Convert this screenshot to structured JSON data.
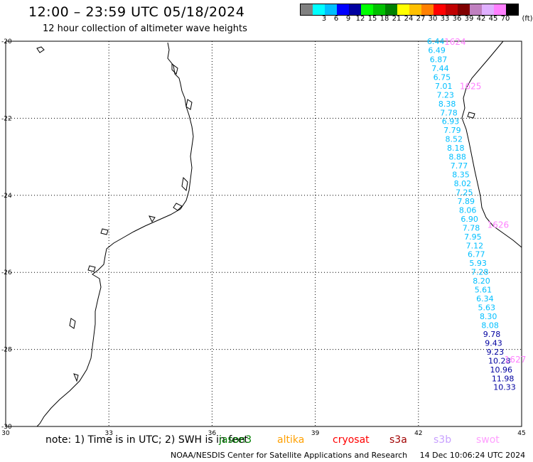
{
  "header": {
    "title": "12:00 – 23:59 UTC 05/18/2024",
    "subtitle": "12 hour collection of altimeter wave heights"
  },
  "legend": {
    "unit": "(ft)",
    "swatches": [
      {
        "color": "#808080",
        "label": ""
      },
      {
        "color": "#00ffff",
        "label": "3"
      },
      {
        "color": "#00bfff",
        "label": "6"
      },
      {
        "color": "#0000ff",
        "label": "9"
      },
      {
        "color": "#0000a0",
        "label": "12"
      },
      {
        "color": "#00ff00",
        "label": "15"
      },
      {
        "color": "#00c000",
        "label": "18"
      },
      {
        "color": "#008000",
        "label": "21"
      },
      {
        "color": "#ffff00",
        "label": "24"
      },
      {
        "color": "#ffc000",
        "label": "27"
      },
      {
        "color": "#ff8000",
        "label": "30"
      },
      {
        "color": "#ff0000",
        "label": "33"
      },
      {
        "color": "#c00000",
        "label": "36"
      },
      {
        "color": "#800000",
        "label": "39"
      },
      {
        "color": "#c080c0",
        "label": "42"
      },
      {
        "color": "#e0b0ff",
        "label": "45"
      },
      {
        "color": "#ff80ff",
        "label": "70"
      },
      {
        "color": "#000000",
        "label": ""
      }
    ]
  },
  "map": {
    "lat_labels": [
      "-20",
      "-22",
      "-24",
      "-26",
      "-28",
      "-30"
    ],
    "lon_labels": [
      "30",
      "33",
      "36",
      "39",
      "42",
      "45"
    ],
    "track_labels": [
      {
        "text": "1624",
        "lon": 42.75,
        "lat": -20.0,
        "color": "#ff80ff"
      },
      {
        "text": "1625",
        "lon": 43.2,
        "lat": -21.15,
        "color": "#ff80ff"
      },
      {
        "text": "1626",
        "lon": 44.0,
        "lat": -24.75,
        "color": "#ff80ff"
      },
      {
        "text": "1627",
        "lon": 44.5,
        "lat": -28.25,
        "color": "#ff80ff"
      }
    ],
    "swh_points": [
      {
        "value": "6.44",
        "lon": 42.25,
        "lat": -20.0,
        "color": "#00bfff"
      },
      {
        "value": "6.49",
        "lon": 42.28,
        "lat": -20.23,
        "color": "#00bfff"
      },
      {
        "value": "6.87",
        "lon": 42.33,
        "lat": -20.47,
        "color": "#00bfff"
      },
      {
        "value": "7.44",
        "lon": 42.38,
        "lat": -20.7,
        "color": "#00bfff"
      },
      {
        "value": "6.75",
        "lon": 42.43,
        "lat": -20.93,
        "color": "#00bfff"
      },
      {
        "value": "7.01",
        "lon": 42.48,
        "lat": -21.16,
        "color": "#00bfff"
      },
      {
        "value": "7.23",
        "lon": 42.53,
        "lat": -21.39,
        "color": "#00bfff"
      },
      {
        "value": "8.38",
        "lon": 42.58,
        "lat": -21.62,
        "color": "#00bfff"
      },
      {
        "value": "7.78",
        "lon": 42.63,
        "lat": -21.85,
        "color": "#00bfff"
      },
      {
        "value": "6.93",
        "lon": 42.68,
        "lat": -22.08,
        "color": "#00bfff"
      },
      {
        "value": "7.79",
        "lon": 42.73,
        "lat": -22.31,
        "color": "#00bfff"
      },
      {
        "value": "8.52",
        "lon": 42.78,
        "lat": -22.54,
        "color": "#00bfff"
      },
      {
        "value": "8.18",
        "lon": 42.83,
        "lat": -22.77,
        "color": "#00bfff"
      },
      {
        "value": "8.88",
        "lon": 42.88,
        "lat": -23.0,
        "color": "#00bfff"
      },
      {
        "value": "7.77",
        "lon": 42.93,
        "lat": -23.23,
        "color": "#00bfff"
      },
      {
        "value": "8.35",
        "lon": 42.98,
        "lat": -23.46,
        "color": "#00bfff"
      },
      {
        "value": "8.02",
        "lon": 43.03,
        "lat": -23.69,
        "color": "#00bfff"
      },
      {
        "value": "7.25",
        "lon": 43.08,
        "lat": -23.92,
        "color": "#00bfff"
      },
      {
        "value": "7.89",
        "lon": 43.13,
        "lat": -24.15,
        "color": "#00bfff"
      },
      {
        "value": "8.06",
        "lon": 43.18,
        "lat": -24.38,
        "color": "#00bfff"
      },
      {
        "value": "6.90",
        "lon": 43.23,
        "lat": -24.61,
        "color": "#00bfff"
      },
      {
        "value": "7.78",
        "lon": 43.28,
        "lat": -24.84,
        "color": "#00bfff"
      },
      {
        "value": "7.95",
        "lon": 43.33,
        "lat": -25.07,
        "color": "#00bfff"
      },
      {
        "value": "7.12",
        "lon": 43.38,
        "lat": -25.3,
        "color": "#00bfff"
      },
      {
        "value": "6.77",
        "lon": 43.43,
        "lat": -25.53,
        "color": "#00bfff"
      },
      {
        "value": "5.93",
        "lon": 43.48,
        "lat": -25.76,
        "color": "#00bfff"
      },
      {
        "value": "7.28",
        "lon": 43.53,
        "lat": -25.99,
        "color": "#00bfff"
      },
      {
        "value": "8.20",
        "lon": 43.58,
        "lat": -26.22,
        "color": "#00bfff"
      },
      {
        "value": "5.61",
        "lon": 43.63,
        "lat": -26.45,
        "color": "#00bfff"
      },
      {
        "value": "6.34",
        "lon": 43.68,
        "lat": -26.68,
        "color": "#00bfff"
      },
      {
        "value": "5.63",
        "lon": 43.73,
        "lat": -26.91,
        "color": "#00bfff"
      },
      {
        "value": "8.30",
        "lon": 43.78,
        "lat": -27.14,
        "color": "#00bfff"
      },
      {
        "value": "8.08",
        "lon": 43.83,
        "lat": -27.37,
        "color": "#00bfff"
      },
      {
        "value": "9.78",
        "lon": 43.88,
        "lat": -27.6,
        "color": "#0000a0"
      },
      {
        "value": "9.43",
        "lon": 43.93,
        "lat": -27.83,
        "color": "#0000a0"
      },
      {
        "value": "9.23",
        "lon": 43.98,
        "lat": -28.06,
        "color": "#0000a0"
      },
      {
        "value": "10.28",
        "lon": 44.03,
        "lat": -28.29,
        "color": "#0000a0"
      },
      {
        "value": "10.96",
        "lon": 44.08,
        "lat": -28.52,
        "color": "#0000a0"
      },
      {
        "value": "11.98",
        "lon": 44.13,
        "lat": -28.75,
        "color": "#0000a0"
      },
      {
        "value": "10.33",
        "lon": 44.18,
        "lat": -28.98,
        "color": "#0000a0"
      }
    ]
  },
  "notes": {
    "text": "note:  1) Time is in UTC;  2) SWH is in feet",
    "missions": [
      {
        "name": "jason3",
        "color": "#008000"
      },
      {
        "name": "altika",
        "color": "#ffa000"
      },
      {
        "name": "cryosat",
        "color": "#ff0000"
      },
      {
        "name": "s3a",
        "color": "#a00000"
      },
      {
        "name": "s3b",
        "color": "#c8a0ff"
      },
      {
        "name": "swot",
        "color": "#ffa0ff"
      }
    ]
  },
  "footer": {
    "credit": "NOAA/NESDIS Center for Satellite Applications and Research",
    "timestamp": "14 Dec 10:06:24 UTC 2024"
  }
}
